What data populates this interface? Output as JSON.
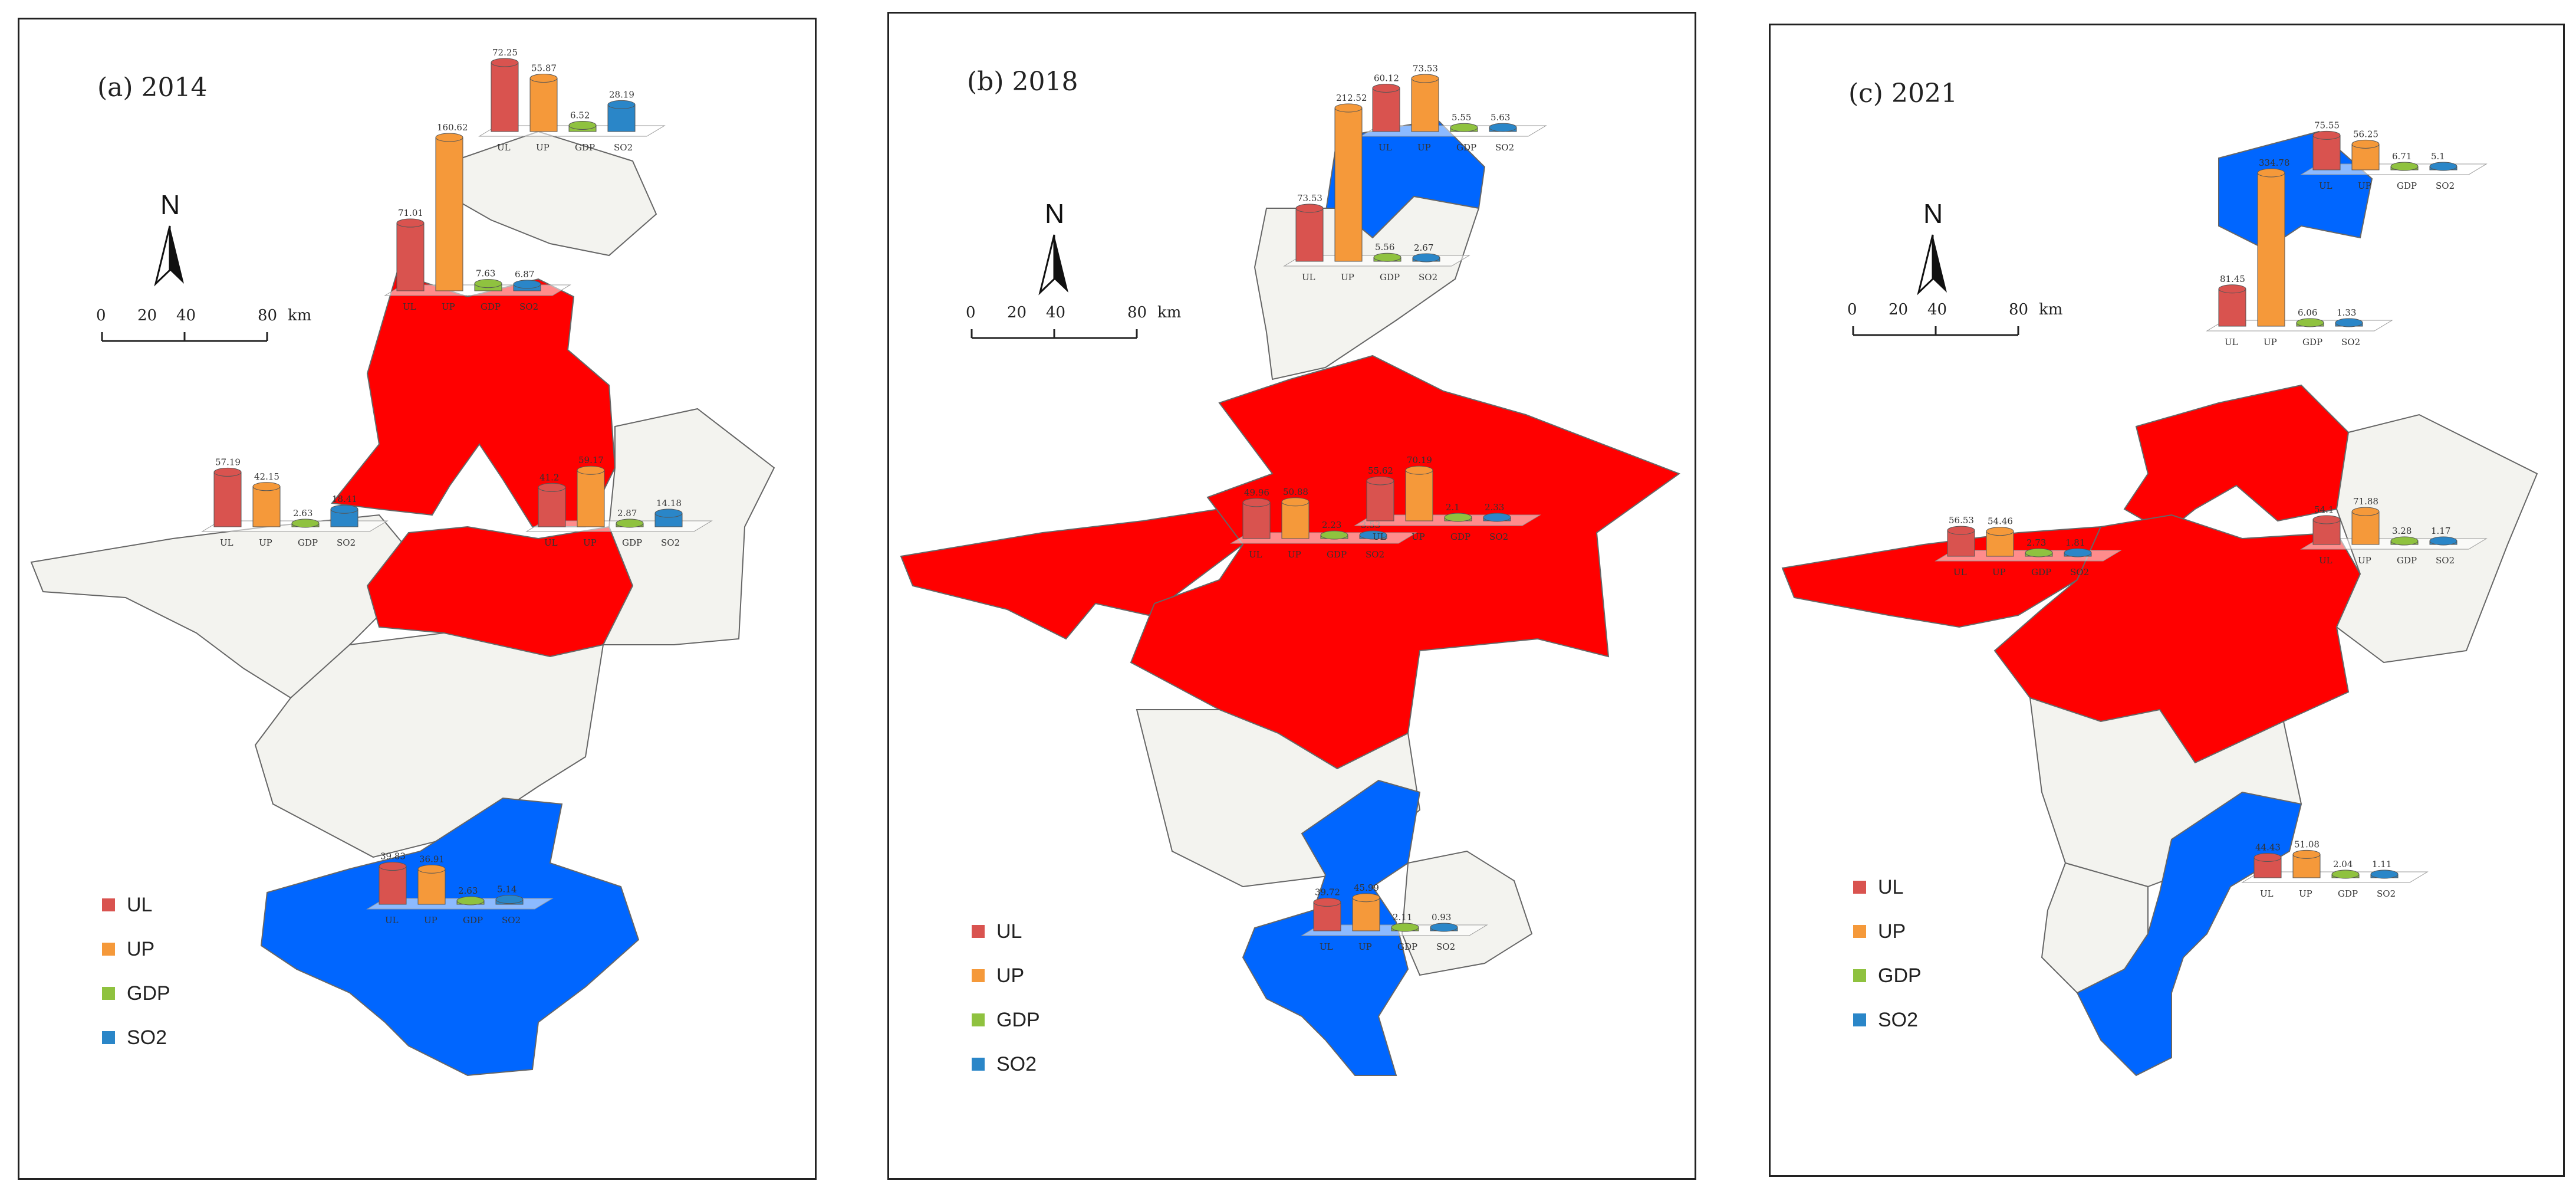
{
  "colors": {
    "high": "#ff0000",
    "low": "#0066ff",
    "neutral": "#f3f3ef",
    "border": "#666666",
    "UL": "#d9534f",
    "UP": "#f5993a",
    "GDP": "#8fc23f",
    "SO2": "#2a86c8"
  },
  "north_label": "N",
  "scale": {
    "ticks": [
      "0",
      "20",
      "40",
      "80"
    ],
    "unit": "km"
  },
  "legend": [
    {
      "label": "UL",
      "color": "#d9534f"
    },
    {
      "label": "UP",
      "color": "#f5993a"
    },
    {
      "label": "GDP",
      "color": "#8fc23f"
    },
    {
      "label": "SO2",
      "color": "#2a86c8"
    }
  ],
  "panels": [
    {
      "title": "(a)  2014",
      "regions": {
        "north": "neutral",
        "north_mid": "high",
        "center_west": "neutral",
        "center_east": "high",
        "south": "low"
      },
      "charts": [
        {
          "id": "n1",
          "labels": [
            "UL",
            "UP",
            "GDP",
            "SO2"
          ],
          "values": [
            "72.25",
            "55.87",
            "6.52",
            "28.19"
          ]
        },
        {
          "id": "n2",
          "labels": [
            "UL",
            "UP",
            "GDP",
            "SO2"
          ],
          "values": [
            "71.01",
            "160.62",
            "7.63",
            "6.87"
          ]
        },
        {
          "id": "w",
          "labels": [
            "UL",
            "UP",
            "GDP",
            "SO2"
          ],
          "values": [
            "57.19",
            "42.15",
            "2.63",
            "18.41"
          ]
        },
        {
          "id": "e",
          "labels": [
            "UL",
            "UP",
            "GDP",
            "SO2"
          ],
          "values": [
            "41.2",
            "59.17",
            "2.87",
            "14.18"
          ]
        },
        {
          "id": "s",
          "labels": [
            "UL",
            "UP",
            "GDP",
            "SO2"
          ],
          "values": [
            "39.83",
            "36.91",
            "2.63",
            "5.14"
          ]
        }
      ]
    },
    {
      "title": "(b)  2018",
      "regions": {
        "north": "low",
        "north_mid": "neutral",
        "center_west": "high",
        "center_east": "high",
        "south": "low"
      },
      "charts": [
        {
          "id": "n1",
          "labels": [
            "UL",
            "UP",
            "GDP",
            "SO2"
          ],
          "values": [
            "60.12",
            "73.53",
            "5.55",
            "5.63"
          ]
        },
        {
          "id": "n2",
          "labels": [
            "UL",
            "UP",
            "GDP",
            "SO2"
          ],
          "values": [
            "73.53",
            "212.52",
            "5.56",
            "2.67"
          ]
        },
        {
          "id": "w",
          "labels": [
            "UL",
            "UP",
            "GDP",
            "SO2"
          ],
          "values": [
            "49.96",
            "50.88",
            "2.23",
            "3.53"
          ]
        },
        {
          "id": "e",
          "labels": [
            "UL",
            "UP",
            "GDP",
            "SO2"
          ],
          "values": [
            "55.62",
            "70.19",
            "2.1",
            "2.33"
          ]
        },
        {
          "id": "s",
          "labels": [
            "UL",
            "UP",
            "GDP",
            "SO2"
          ],
          "values": [
            "39.72",
            "45.99",
            "2.11",
            "0.93"
          ]
        }
      ]
    },
    {
      "title": "(c)  2021",
      "regions": {
        "north": "low",
        "north_mid": "high",
        "center_west": "high",
        "center_east": "high",
        "south": "low"
      },
      "charts": [
        {
          "id": "n1",
          "labels": [
            "UL",
            "UP",
            "GDP",
            "SO2"
          ],
          "values": [
            "75.55",
            "56.25",
            "6.71",
            "5.1"
          ]
        },
        {
          "id": "n2",
          "labels": [
            "UL",
            "UP",
            "GDP",
            "SO2"
          ],
          "values": [
            "81.45",
            "334.78",
            "6.06",
            "1.33"
          ]
        },
        {
          "id": "w",
          "labels": [
            "UL",
            "UP",
            "GDP",
            "SO2"
          ],
          "values": [
            "56.53",
            "54.46",
            "2.73",
            "1.81"
          ]
        },
        {
          "id": "e",
          "labels": [
            "UL",
            "UP",
            "GDP",
            "SO2"
          ],
          "values": [
            "54.1",
            "71.88",
            "3.28",
            "1.17"
          ]
        },
        {
          "id": "s",
          "labels": [
            "UL",
            "UP",
            "GDP",
            "SO2"
          ],
          "values": [
            "44.43",
            "51.08",
            "2.04",
            "1.11"
          ]
        }
      ]
    }
  ]
}
